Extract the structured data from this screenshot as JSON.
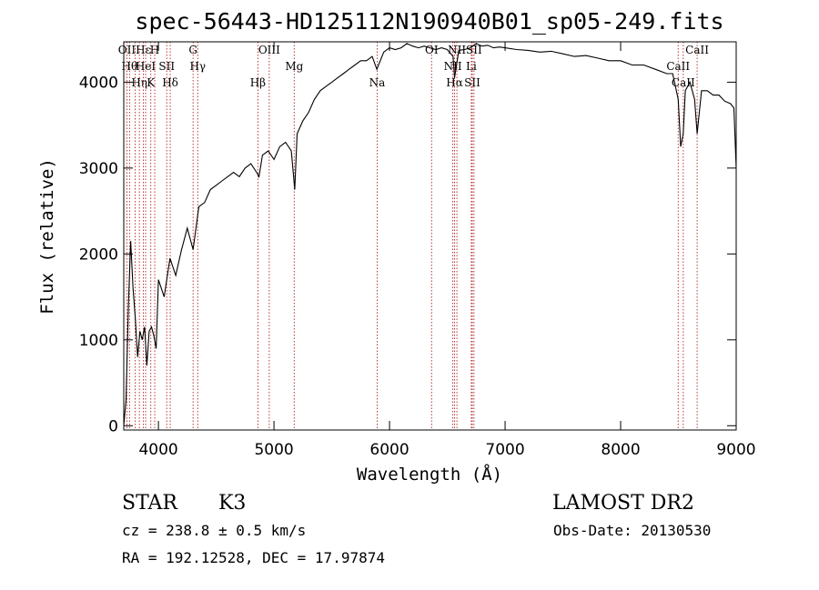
{
  "chart_data": {
    "type": "line",
    "title": "spec-56443-HD125112N190940B01_sp05-249.fits",
    "xlabel": "Wavelength (Å)",
    "ylabel": "Flux (relative)",
    "xlim": [
      3700,
      9000
    ],
    "ylim": [
      -50,
      4470
    ],
    "x_ticks": [
      4000,
      5000,
      6000,
      7000,
      8000,
      9000
    ],
    "y_ticks": [
      0,
      1000,
      2000,
      3000,
      4000
    ],
    "grid": false,
    "line_color": "#000000",
    "marker_color": "#b22222",
    "series": [
      {
        "x": [
          3700,
          3720,
          3740,
          3760,
          3780,
          3800,
          3820,
          3840,
          3860,
          3880,
          3900,
          3920,
          3940,
          3960,
          3980,
          4000,
          4050,
          4100,
          4150,
          4200,
          4250,
          4300,
          4350,
          4400,
          4450,
          4500,
          4550,
          4600,
          4650,
          4700,
          4750,
          4800,
          4850,
          4870,
          4900,
          4950,
          5000,
          5050,
          5100,
          5150,
          5180,
          5200,
          5250,
          5300,
          5350,
          5400,
          5450,
          5500,
          5550,
          5600,
          5650,
          5700,
          5750,
          5800,
          5850,
          5890,
          5950,
          6000,
          6050,
          6100,
          6150,
          6200,
          6250,
          6300,
          6350,
          6400,
          6450,
          6500,
          6550,
          6563,
          6600,
          6650,
          6700,
          6750,
          6800,
          6850,
          6900,
          6950,
          7000,
          7100,
          7200,
          7300,
          7400,
          7500,
          7600,
          7700,
          7800,
          7900,
          8000,
          8100,
          8200,
          8300,
          8400,
          8450,
          8498,
          8520,
          8542,
          8560,
          8600,
          8640,
          8662,
          8700,
          8750,
          8800,
          8850,
          8900,
          8950,
          8980,
          9000
        ],
        "y": [
          0,
          300,
          1400,
          2150,
          1600,
          1250,
          800,
          1100,
          1000,
          1150,
          700,
          1100,
          1150,
          1050,
          900,
          1700,
          1500,
          1950,
          1750,
          2050,
          2300,
          2050,
          2550,
          2600,
          2750,
          2800,
          2850,
          2900,
          2950,
          2900,
          3000,
          3050,
          2950,
          2900,
          3150,
          3200,
          3100,
          3250,
          3300,
          3200,
          2750,
          3400,
          3550,
          3650,
          3800,
          3900,
          3950,
          4000,
          4050,
          4100,
          4150,
          4200,
          4250,
          4250,
          4300,
          4150,
          4350,
          4400,
          4380,
          4400,
          4450,
          4420,
          4400,
          4420,
          4400,
          4380,
          4400,
          4380,
          4300,
          4050,
          4370,
          4380,
          4400,
          4450,
          4420,
          4430,
          4400,
          4410,
          4400,
          4380,
          4370,
          4350,
          4360,
          4330,
          4300,
          4310,
          4280,
          4250,
          4250,
          4200,
          4200,
          4150,
          4100,
          4100,
          3800,
          3250,
          3400,
          3900,
          4000,
          3800,
          3400,
          3900,
          3900,
          3850,
          3850,
          3780,
          3750,
          3700,
          3000
        ]
      }
    ],
    "lines": [
      {
        "wave": 3727,
        "labels": [
          "OII"
        ]
      },
      {
        "wave": 3750,
        "labels": [
          "Hθ"
        ]
      },
      {
        "wave": 3798,
        "labels": []
      },
      {
        "wave": 3835,
        "labels": [
          "Hη"
        ]
      },
      {
        "wave": 3869,
        "labels": [
          "Hε"
        ]
      },
      {
        "wave": 3889,
        "labels": [
          "HeI"
        ]
      },
      {
        "wave": 3934,
        "labels": [
          "K"
        ]
      },
      {
        "wave": 3968,
        "labels": [
          "H"
        ]
      },
      {
        "wave": 4072,
        "labels": [
          "SII"
        ]
      },
      {
        "wave": 4102,
        "labels": [
          "Hδ"
        ]
      },
      {
        "wave": 4300,
        "labels": [
          "G"
        ]
      },
      {
        "wave": 4340,
        "labels": [
          "Hγ"
        ]
      },
      {
        "wave": 4861,
        "labels": [
          "Hβ"
        ]
      },
      {
        "wave": 4959,
        "labels": [
          "OIII"
        ]
      },
      {
        "wave": 5175,
        "labels": [
          "Mg"
        ]
      },
      {
        "wave": 5893,
        "labels": [
          "Na"
        ]
      },
      {
        "wave": 6364,
        "labels": [
          "OI"
        ]
      },
      {
        "wave": 6548,
        "labels": [
          "NII"
        ]
      },
      {
        "wave": 6563,
        "labels": [
          "Hα"
        ]
      },
      {
        "wave": 6583,
        "labels": [
          "NII"
        ]
      },
      {
        "wave": 6708,
        "labels": [
          "Li"
        ]
      },
      {
        "wave": 6716,
        "labels": [
          "SII"
        ]
      },
      {
        "wave": 6731,
        "labels": [
          "SII"
        ]
      },
      {
        "wave": 8498,
        "labels": [
          "CaII"
        ]
      },
      {
        "wave": 8542,
        "labels": [
          "CaII"
        ]
      },
      {
        "wave": 8662,
        "labels": [
          "CaII"
        ]
      }
    ]
  },
  "info": {
    "class": "STAR",
    "subclass": "K3",
    "survey": "LAMOST DR2",
    "cz": "cz = 238.8 ± 0.5 km/s",
    "obs_date": "Obs-Date: 20130530",
    "radec": "RA = 192.12528, DEC =  17.97874"
  }
}
